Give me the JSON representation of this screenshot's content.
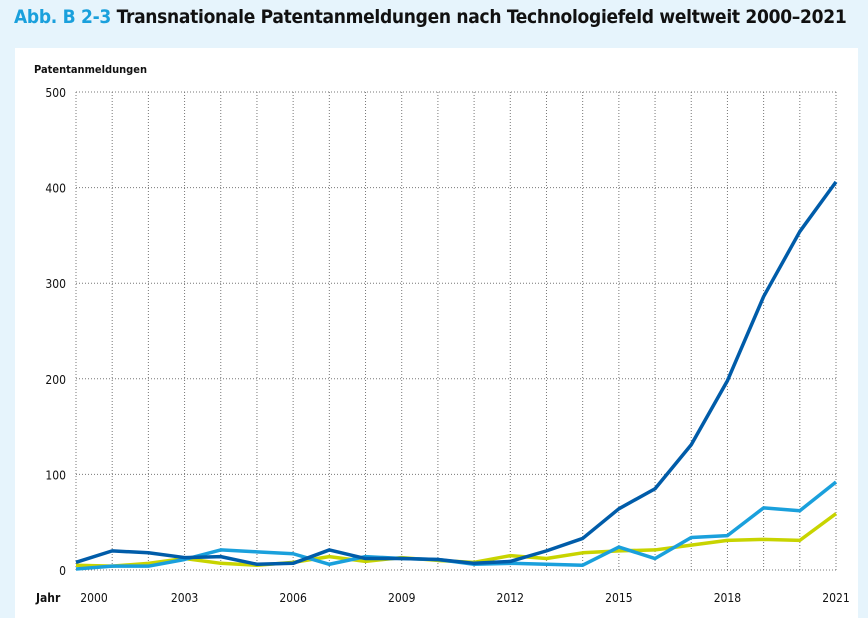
{
  "figure_label": "Abb. B 2-3",
  "chart_data": {
    "type": "line",
    "title": "Transnationale Patentanmeldungen nach Technologiefeld weltweit 2000–2021",
    "ylabel": "Patentanmeldungen",
    "xlabel": "Jahr",
    "ylim": [
      0,
      500
    ],
    "yticks": [
      0,
      100,
      200,
      300,
      400,
      500
    ],
    "xlim": [
      2000,
      2021
    ],
    "xticks": [
      2000,
      2003,
      2006,
      2009,
      2012,
      2015,
      2018,
      2021
    ],
    "grid": true,
    "x": [
      2000,
      2001,
      2002,
      2003,
      2004,
      2005,
      2006,
      2007,
      2008,
      2009,
      2010,
      2011,
      2012,
      2013,
      2014,
      2015,
      2016,
      2017,
      2018,
      2019,
      2020,
      2021
    ],
    "series": [
      {
        "color": "#c8d400",
        "values": [
          5,
          4,
          7,
          12,
          7,
          5,
          8,
          14,
          9,
          13,
          10,
          8,
          15,
          12,
          18,
          20,
          21,
          26,
          31,
          32,
          31,
          59
        ]
      },
      {
        "color": "#1aa0dc",
        "values": [
          1,
          4,
          4,
          11,
          21,
          19,
          17,
          6,
          14,
          12,
          11,
          6,
          7,
          6,
          5,
          24,
          12,
          34,
          36,
          65,
          62,
          92
        ]
      },
      {
        "color": "#005ca9",
        "values": [
          8,
          20,
          18,
          13,
          14,
          6,
          7,
          21,
          12,
          12,
          11,
          7,
          9,
          20,
          33,
          64,
          85,
          131,
          198,
          286,
          354,
          406
        ]
      }
    ]
  }
}
